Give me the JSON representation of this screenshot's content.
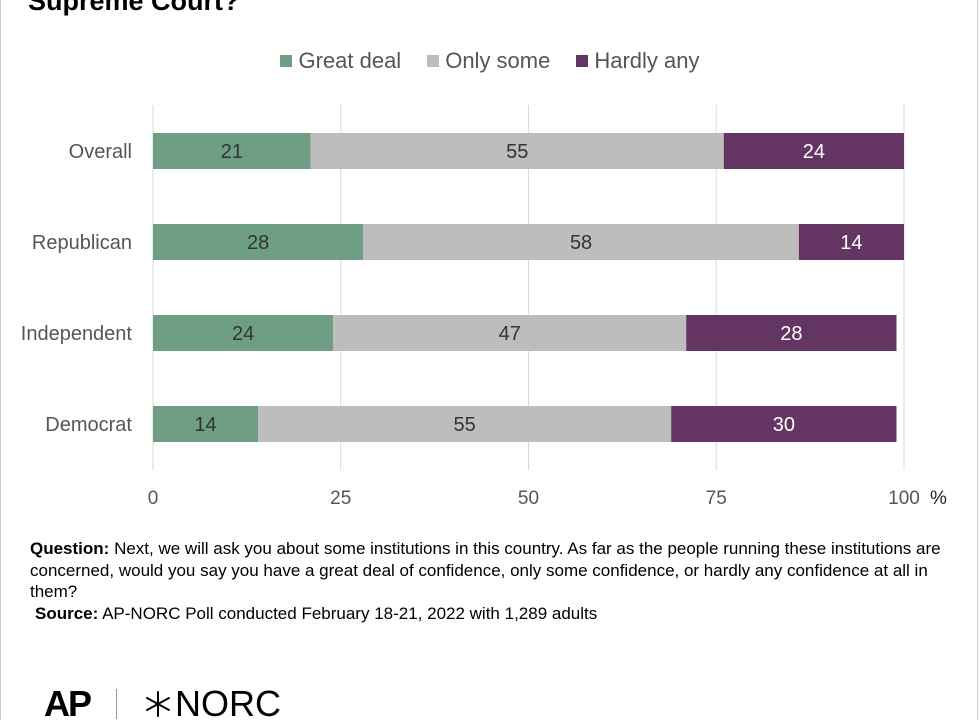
{
  "title": "Supreme Court?",
  "legend": [
    {
      "label": "Great deal",
      "color": "#6e9e84"
    },
    {
      "label": "Only some",
      "color": "#bdbdbd"
    },
    {
      "label": "Hardly any",
      "color": "#643563"
    }
  ],
  "chart_data": {
    "type": "bar",
    "orientation": "horizontal",
    "stacked": true,
    "categories": [
      "Overall",
      "Republican",
      "Independent",
      "Democrat"
    ],
    "series": [
      {
        "name": "Great deal",
        "values": [
          21,
          28,
          24,
          14
        ],
        "color": "#6e9e84"
      },
      {
        "name": "Only some",
        "values": [
          55,
          58,
          47,
          55
        ],
        "color": "#bdbdbd"
      },
      {
        "name": "Hardly any",
        "values": [
          24,
          14,
          28,
          30
        ],
        "color": "#643563"
      }
    ],
    "xlim": [
      0,
      100
    ],
    "xticks": [
      0,
      25,
      50,
      75,
      100
    ],
    "x_unit": "%",
    "grid": true,
    "legend_position": "top"
  },
  "notes": {
    "question_label": "Question:",
    "question_text": " Next, we will ask you about some institutions in this country. As far as the people running these institutions are concerned, would you say you have a great deal of confidence, only some confidence, or hardly any confidence at all in them?",
    "source_label": "Source:",
    "source_text": " AP-NORC Poll conducted February 18-21, 2022 with 1,289 adults"
  },
  "logos": {
    "ap": "AP",
    "norc": "NORC"
  }
}
